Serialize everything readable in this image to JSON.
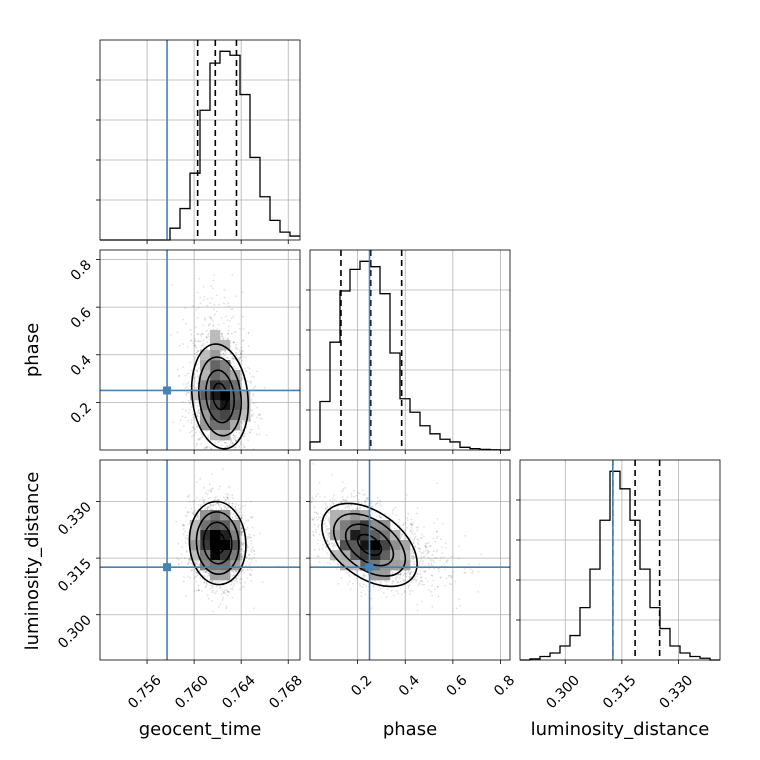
{
  "chart_data": {
    "type": "corner",
    "truth_color": "#4682b4",
    "parameters": [
      {
        "name": "geocent_time",
        "label": "geocent_time",
        "range": [
          0.752,
          0.769
        ],
        "ticks": [
          0.756,
          0.76,
          0.764,
          0.768
        ],
        "tick_labels": [
          "0.756",
          "0.760",
          "0.764",
          "0.768"
        ],
        "truth": 0.7577,
        "quantiles": [
          0.7603,
          0.7618,
          0.7636
        ],
        "hist_edges_start": 0.752,
        "hist_bin_width": 0.00085,
        "hist_counts": [
          0,
          0,
          0,
          0,
          0,
          0,
          0,
          3,
          8,
          17,
          33,
          45,
          48,
          47,
          37,
          21,
          11,
          5,
          2,
          1
        ]
      },
      {
        "name": "phase",
        "label": "phase",
        "range": [
          0.0,
          0.84
        ],
        "ticks": [
          0.2,
          0.4,
          0.6,
          0.8
        ],
        "tick_labels": [
          "0.2",
          "0.4",
          "0.6",
          "0.8"
        ],
        "truth": 0.25,
        "quantiles": [
          0.13,
          0.255,
          0.385
        ],
        "hist_edges_start": 0.0,
        "hist_bin_width": 0.042,
        "hist_counts": [
          3,
          18,
          40,
          59,
          67,
          70,
          68,
          58,
          36,
          19,
          14,
          9,
          6,
          4,
          3,
          1,
          0.5,
          0.2,
          0.1,
          0
        ]
      },
      {
        "name": "luminosity_distance",
        "label": "luminosity_distance",
        "range": [
          0.288,
          0.341
        ],
        "ticks": [
          0.3,
          0.315,
          0.33
        ],
        "tick_labels": [
          "0.300",
          "0.315",
          "0.330"
        ],
        "truth": 0.3126,
        "quantiles": [
          0.3126,
          0.3185,
          0.325
        ],
        "hist_edges_start": 0.288,
        "hist_bin_width": 0.00265,
        "hist_counts": [
          0,
          0.3,
          1,
          2,
          4,
          7,
          15,
          26,
          40,
          54,
          49,
          40,
          26,
          15,
          9,
          4,
          2,
          1,
          0.5,
          0
        ]
      }
    ],
    "pairs": [
      {
        "x": "geocent_time",
        "y": "phase",
        "center": [
          0.7622,
          0.225
        ],
        "sigma": [
          0.0012,
          0.11
        ],
        "correlation": -0.15
      },
      {
        "x": "geocent_time",
        "y": "luminosity_distance",
        "center": [
          0.762,
          0.319
        ],
        "sigma": [
          0.0012,
          0.0055
        ],
        "correlation": -0.05
      },
      {
        "x": "phase",
        "y": "luminosity_distance",
        "center": [
          0.25,
          0.3185
        ],
        "sigma": [
          0.1,
          0.0055
        ],
        "correlation": -0.45
      }
    ]
  }
}
